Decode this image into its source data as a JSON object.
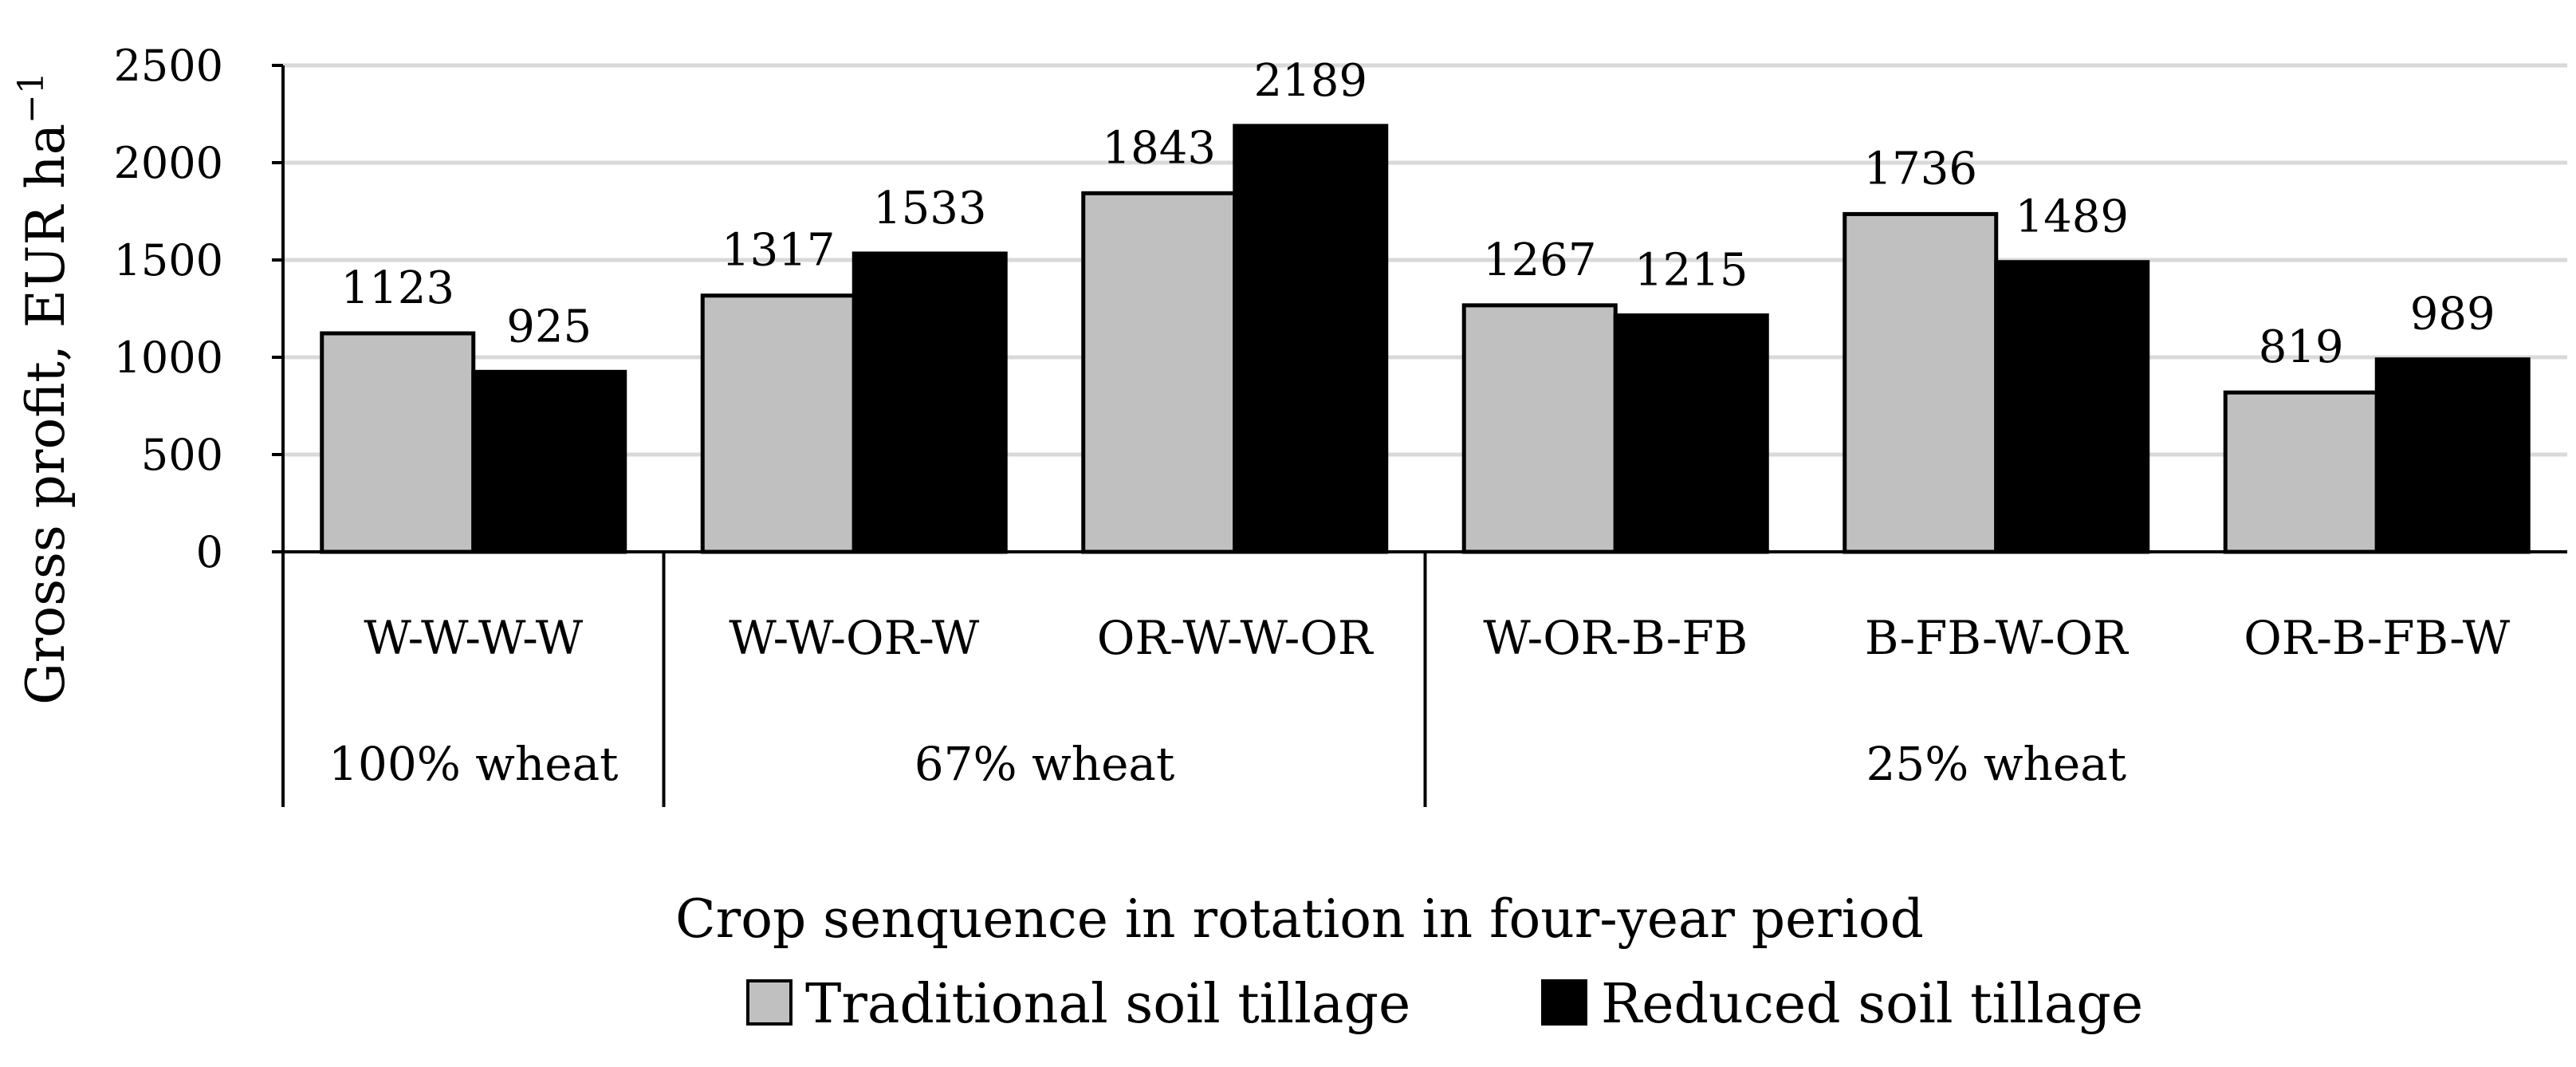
{
  "chart_data": {
    "type": "bar",
    "categories": [
      "W-W-W-W",
      "W-W-OR-W",
      "OR-W-W-OR",
      "W-OR-B-FB",
      "B-FB-W-OR",
      "OR-B-FB-W"
    ],
    "groups": [
      {
        "label": "100% wheat",
        "count": 1
      },
      {
        "label": "67% wheat",
        "count": 2
      },
      {
        "label": "25% wheat",
        "count": 3
      }
    ],
    "series": [
      {
        "name": "Traditional soil tillage",
        "color": "#c0c0c0",
        "values": [
          1123,
          1317,
          1843,
          1267,
          1736,
          819
        ]
      },
      {
        "name": "Reduced soil tillage",
        "color": "#000000",
        "values": [
          925,
          1533,
          2189,
          1215,
          1489,
          989
        ]
      }
    ],
    "ylabel": "Grosss profit, EUR ha",
    "ylabel_sup": "−1",
    "xlabel": "Crop senquence in rotation in four-year period",
    "ylim": [
      0,
      2500
    ],
    "yticks": [
      0,
      500,
      1000,
      1500,
      2000,
      2500
    ],
    "grid": true,
    "legend_position": "bottom"
  }
}
